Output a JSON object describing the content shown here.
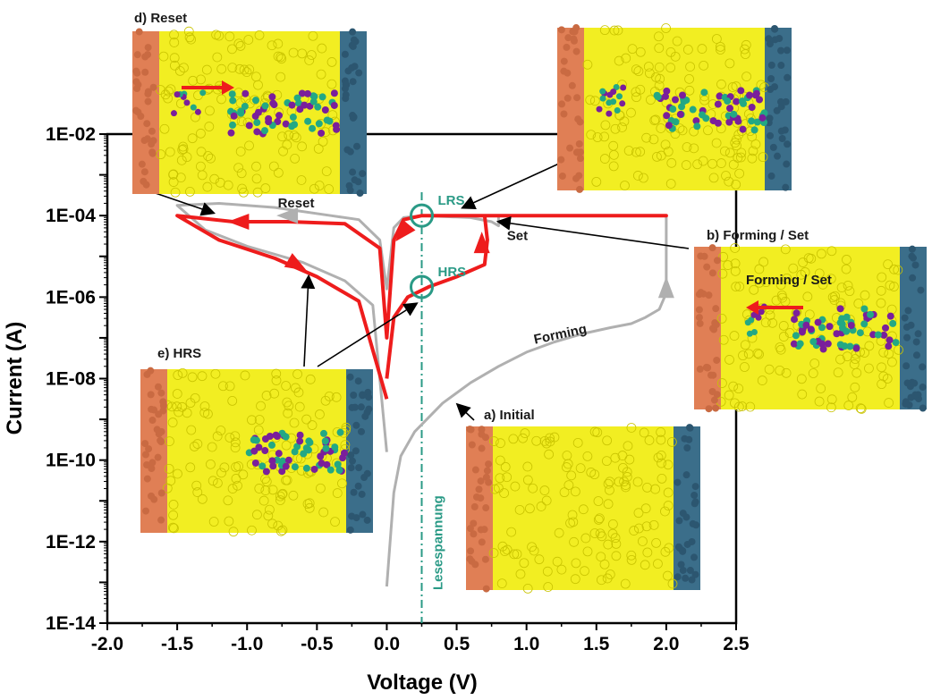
{
  "chart_data": {
    "type": "line",
    "title": "",
    "xlabel": "Voltage (V)",
    "ylabel": "Current (A)",
    "xlim": [
      -2.0,
      2.5
    ],
    "ylim_log10": [
      -14,
      -2
    ],
    "y_scale": "log",
    "x_ticks": [
      "-2.0",
      "-1.5",
      "-1.0",
      "-0.5",
      "0.0",
      "0.5",
      "1.0",
      "1.5",
      "2.0",
      "2.5"
    ],
    "y_ticks": [
      "1E-14",
      "1E-12",
      "1E-10",
      "1E-08",
      "1E-06",
      "1E-04",
      "1E-02"
    ],
    "read_voltage": {
      "x": 0.25,
      "label": "Lesespannung",
      "color": "#2a9a86"
    },
    "series": [
      {
        "color": "#b0b0b0",
        "points": [
          [
            0.0,
            -13.1
          ],
          [
            0.05,
            -10.8
          ],
          [
            0.1,
            -9.9
          ],
          [
            0.2,
            -9.3
          ],
          [
            0.4,
            -8.6
          ],
          [
            0.6,
            -8.1
          ],
          [
            0.8,
            -7.7
          ],
          [
            1.0,
            -7.35
          ],
          [
            1.2,
            -7.1
          ],
          [
            1.4,
            -6.9
          ],
          [
            1.6,
            -6.75
          ],
          [
            1.75,
            -6.65
          ],
          [
            1.85,
            -6.5
          ],
          [
            1.95,
            -6.3
          ],
          [
            2.0,
            -5.9
          ],
          [
            2.0,
            -4.0
          ],
          [
            0.8,
            -4.0
          ],
          [
            0.8,
            -4.25
          ],
          [
            0.75,
            -4.15
          ],
          [
            0.6,
            -4.05
          ],
          [
            0.25,
            -4.0
          ],
          [
            0.12,
            -4.05
          ],
          [
            0.05,
            -4.3
          ],
          [
            0.0,
            -5.8
          ],
          [
            -0.05,
            -4.6
          ],
          [
            -0.2,
            -4.1
          ],
          [
            -0.4,
            -4.0
          ],
          [
            -0.8,
            -3.8
          ],
          [
            -1.2,
            -3.7
          ],
          [
            -1.5,
            -3.75
          ],
          [
            -1.3,
            -4.35
          ],
          [
            -1.0,
            -4.75
          ],
          [
            -0.6,
            -5.15
          ],
          [
            -0.3,
            -5.6
          ],
          [
            -0.1,
            -6.2
          ],
          [
            0.0,
            -9.8
          ]
        ]
      },
      {
        "color": "#ee1c1c",
        "points": [
          [
            0.0,
            -8.0
          ],
          [
            0.05,
            -6.5
          ],
          [
            0.15,
            -6.0
          ],
          [
            0.3,
            -5.75
          ],
          [
            0.5,
            -5.5
          ],
          [
            0.7,
            -5.2
          ],
          [
            0.72,
            -4.6
          ],
          [
            0.7,
            -4.0
          ],
          [
            2.0,
            -4.0
          ],
          [
            0.7,
            -4.0
          ],
          [
            0.25,
            -4.0
          ],
          [
            0.12,
            -4.1
          ],
          [
            0.05,
            -4.6
          ],
          [
            0.0,
            -7.0
          ],
          [
            -0.05,
            -4.8
          ],
          [
            -0.3,
            -4.2
          ],
          [
            -0.7,
            -4.15
          ],
          [
            -1.1,
            -4.15
          ],
          [
            -1.5,
            -4.0
          ],
          [
            -1.2,
            -4.6
          ],
          [
            -0.8,
            -5.05
          ],
          [
            -0.5,
            -5.5
          ],
          [
            -0.2,
            -6.1
          ],
          [
            0.0,
            -8.5
          ]
        ]
      }
    ],
    "arrowheads": [
      {
        "color": "#ee1c1c",
        "x": -1.05,
        "y": -4.15,
        "dir": "left"
      },
      {
        "color": "#ee1c1c",
        "x": -0.65,
        "y": -5.2,
        "dir": "down-right"
      },
      {
        "color": "#ee1c1c",
        "x": 0.68,
        "y": -4.7,
        "dir": "up"
      },
      {
        "color": "#ee1c1c",
        "x": 0.12,
        "y": -4.4,
        "dir": "down-left"
      },
      {
        "color": "#b0b0b0",
        "x": 2.0,
        "y": -5.8,
        "dir": "up"
      },
      {
        "color": "#b0b0b0",
        "x": -0.7,
        "y": -4.0,
        "dir": "left"
      }
    ],
    "state_markers": [
      {
        "label": "LRS",
        "x": 0.25,
        "y": -4.0
      },
      {
        "label": "HRS",
        "x": 0.25,
        "y": -5.75
      }
    ],
    "curve_labels": [
      {
        "text": "Reset",
        "x": -0.78,
        "y": -3.8
      },
      {
        "text": "Set",
        "x": 0.86,
        "y": -4.6
      },
      {
        "text": "Forming",
        "x": 1.06,
        "y": -7.15
      }
    ],
    "insets": [
      {
        "label": "d) Reset",
        "inner_label": "",
        "filament": "gap-left",
        "arrow": "right"
      },
      {
        "label": "",
        "inner_label": "",
        "filament": "dissolving",
        "arrow": ""
      },
      {
        "label": "b) Forming / Set",
        "inner_label": "Forming / Set",
        "filament": "gap-left",
        "arrow": "left"
      },
      {
        "label": "e) HRS",
        "inner_label": "",
        "filament": "gap-left-wide",
        "arrow": ""
      },
      {
        "label": "a) Initial",
        "inner_label": "",
        "filament": "none",
        "arrow": ""
      }
    ],
    "colors": {
      "left_electrode": "#e07f55",
      "right_electrode": "#3b6e8a",
      "matrix": "#f2ee22",
      "filament_a": "#23a884",
      "filament_b": "#7a1f9b"
    }
  }
}
